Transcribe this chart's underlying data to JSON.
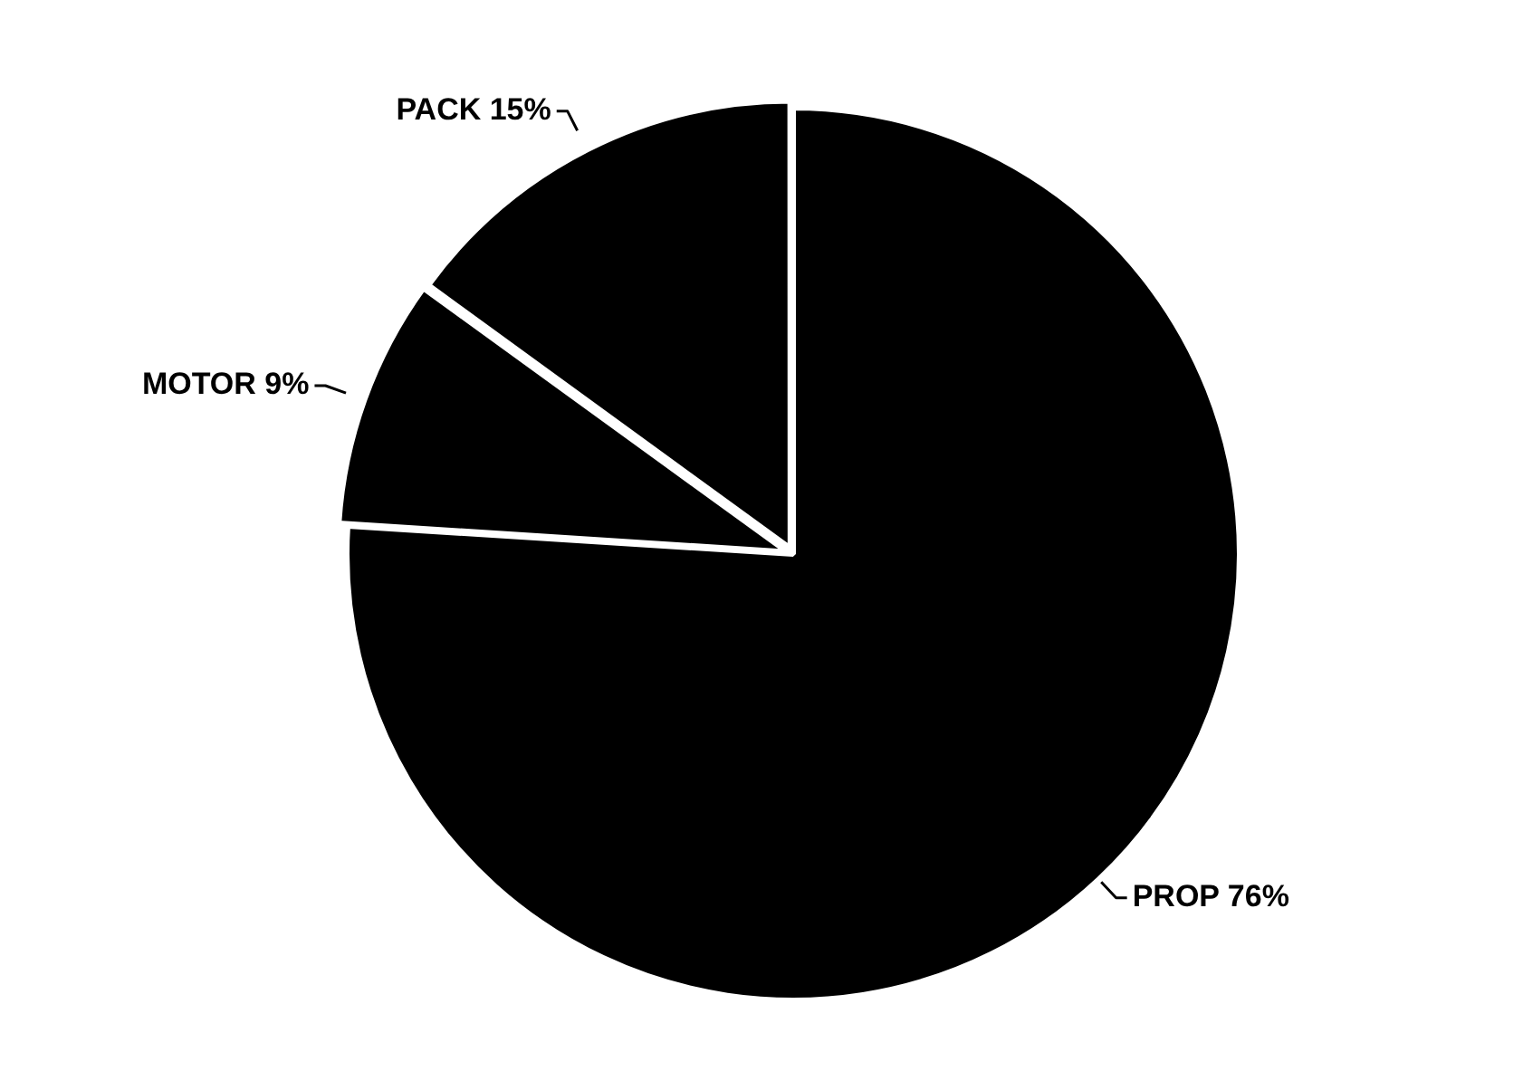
{
  "chart_data": {
    "type": "pie",
    "categories": [
      "PROP",
      "MOTOR",
      "PACK"
    ],
    "values": [
      76,
      9,
      15
    ],
    "value_labels": [
      "76%",
      "9%",
      "15%"
    ],
    "colors": [
      "#000000",
      "#000000",
      "#000000"
    ],
    "legend": false
  }
}
